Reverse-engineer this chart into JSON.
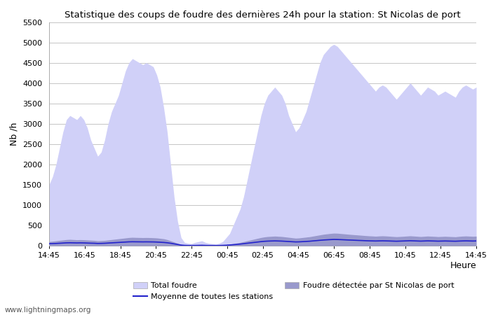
{
  "title": "Statistique des coups de foudre des dernières 24h pour la station: St Nicolas de port",
  "ylabel": "Nb /h",
  "xlabel": "Heure",
  "ylim": [
    0,
    5500
  ],
  "yticks": [
    0,
    500,
    1000,
    1500,
    2000,
    2500,
    3000,
    3500,
    4000,
    4500,
    5000,
    5500
  ],
  "x_labels": [
    "14:45",
    "16:45",
    "18:45",
    "20:45",
    "22:45",
    "00:45",
    "02:45",
    "04:45",
    "06:45",
    "08:45",
    "10:45",
    "12:45",
    "14:45"
  ],
  "watermark": "www.lightningmaps.org",
  "total_foudre_color": "#d0d0f8",
  "station_foudre_color": "#9999cc",
  "mean_line_color": "#2222cc",
  "background_color": "#ffffff",
  "grid_color": "#bbbbbb",
  "total_y": [
    1500,
    1700,
    2000,
    2400,
    2800,
    3100,
    3200,
    3150,
    3100,
    3200,
    3100,
    2900,
    2600,
    2400,
    2200,
    2300,
    2600,
    3000,
    3300,
    3500,
    3700,
    4000,
    4300,
    4500,
    4600,
    4550,
    4500,
    4450,
    4500,
    4450,
    4400,
    4200,
    3900,
    3400,
    2800,
    2000,
    1200,
    600,
    200,
    80,
    60,
    50,
    80,
    100,
    120,
    80,
    60,
    50,
    40,
    60,
    100,
    200,
    300,
    500,
    700,
    900,
    1200,
    1600,
    2000,
    2400,
    2800,
    3200,
    3500,
    3700,
    3800,
    3900,
    3800,
    3700,
    3500,
    3200,
    3000,
    2800,
    2900,
    3100,
    3300,
    3600,
    3900,
    4200,
    4500,
    4700,
    4800,
    4900,
    4950,
    4900,
    4800,
    4700,
    4600,
    4500,
    4400,
    4300,
    4200,
    4100,
    4000,
    3900,
    3800,
    3900,
    3950,
    3900,
    3800,
    3700,
    3600,
    3700,
    3800,
    3900,
    4000,
    3900,
    3800,
    3700,
    3800,
    3900,
    3850,
    3800,
    3700,
    3750,
    3800,
    3750,
    3700,
    3650,
    3800,
    3900,
    3950,
    3900,
    3850,
    3900
  ],
  "station_y": [
    100,
    110,
    120,
    130,
    140,
    150,
    155,
    150,
    145,
    148,
    145,
    140,
    135,
    130,
    120,
    125,
    130,
    140,
    150,
    160,
    170,
    180,
    190,
    200,
    205,
    202,
    200,
    198,
    200,
    198,
    195,
    190,
    180,
    170,
    150,
    120,
    90,
    60,
    30,
    15,
    10,
    10,
    12,
    15,
    18,
    12,
    10,
    10,
    8,
    10,
    15,
    25,
    35,
    50,
    65,
    80,
    100,
    120,
    140,
    160,
    180,
    200,
    215,
    225,
    230,
    235,
    230,
    225,
    215,
    205,
    195,
    185,
    190,
    200,
    210,
    220,
    235,
    250,
    265,
    280,
    290,
    300,
    308,
    305,
    298,
    290,
    282,
    275,
    268,
    262,
    255,
    248,
    242,
    238,
    232,
    238,
    242,
    238,
    232,
    226,
    220,
    225,
    230,
    236,
    242,
    236,
    230,
    224,
    230,
    236,
    232,
    228,
    222,
    226,
    230,
    226,
    222,
    218,
    228,
    234,
    238,
    234,
    230,
    234
  ],
  "mean_y": [
    50,
    52,
    55,
    60,
    65,
    70,
    72,
    70,
    68,
    70,
    68,
    65,
    62,
    60,
    55,
    57,
    60,
    65,
    70,
    75,
    80,
    85,
    90,
    95,
    97,
    96,
    95,
    94,
    95,
    94,
    93,
    90,
    85,
    80,
    72,
    60,
    45,
    30,
    15,
    8,
    5,
    5,
    6,
    8,
    10,
    7,
    5,
    5,
    4,
    5,
    8,
    12,
    18,
    25,
    32,
    40,
    50,
    60,
    70,
    80,
    90,
    100,
    108,
    113,
    116,
    118,
    116,
    113,
    108,
    103,
    98,
    93,
    95,
    100,
    105,
    110,
    118,
    125,
    133,
    140,
    145,
    150,
    154,
    152,
    149,
    145,
    141,
    138,
    134,
    130,
    127,
    123,
    120,
    118,
    116,
    118,
    120,
    118,
    116,
    113,
    110,
    113,
    116,
    119,
    122,
    119,
    116,
    113,
    116,
    119,
    117,
    115,
    112,
    114,
    116,
    114,
    112,
    110,
    114,
    117,
    119,
    117,
    115,
    117
  ]
}
